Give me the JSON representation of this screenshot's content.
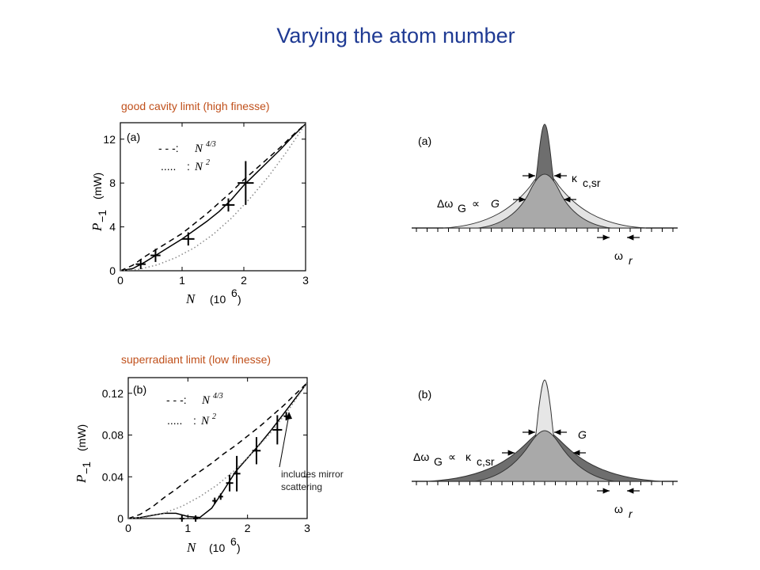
{
  "title": "Varying the atom number",
  "captions": {
    "a": "good cavity limit (high finesse)",
    "b": "superradiant limit (low finesse)"
  },
  "note": {
    "line1": "includes mirror",
    "line2": "scattering"
  },
  "chart_data": [
    {
      "type": "scatter",
      "panel_label": "(a)",
      "xlabel": "N",
      "xunit": "(10",
      "xunit_exp": "6",
      "xunit_close": ")",
      "ylabel": "P",
      "ylabel_sub": "−1",
      "yunit": "(mW)",
      "xlim": [
        0,
        3
      ],
      "ylim": [
        0,
        13.5
      ],
      "xticks": [
        "0",
        "1",
        "2",
        "3"
      ],
      "yticks": [
        "0",
        "4",
        "8",
        "12"
      ],
      "xtick_values": [
        0,
        1,
        2,
        3
      ],
      "ytick_values": [
        0,
        4,
        8,
        12
      ],
      "legend": {
        "dash_prefix": "- - -:",
        "dot_prefix": ".....",
        "dot_sep": ":",
        "symbol": "N",
        "dash_exp": "4/3",
        "dot_exp": "2"
      },
      "points": [
        {
          "x": 0.33,
          "y": 0.6,
          "xerr": 0.08,
          "yerr": 0.45
        },
        {
          "x": 0.57,
          "y": 1.4,
          "xerr": 0.08,
          "yerr": 0.6
        },
        {
          "x": 1.1,
          "y": 2.9,
          "xerr": 0.1,
          "yerr": 0.6
        },
        {
          "x": 1.75,
          "y": 6.0,
          "xerr": 0.1,
          "yerr": 0.6
        },
        {
          "x": 2.03,
          "y": 8.0,
          "xerr": 0.13,
          "yerr": 2.0
        }
      ],
      "series": [
        {
          "style": "solid",
          "x": [
            0,
            0.2,
            0.4,
            0.6,
            0.8,
            1.0,
            1.2,
            1.4,
            1.6,
            1.8,
            2.0,
            2.2,
            2.4,
            2.6,
            2.8,
            3.0
          ],
          "y": [
            0,
            0.2,
            0.8,
            1.5,
            2.2,
            2.9,
            3.7,
            4.5,
            5.4,
            6.5,
            7.8,
            8.9,
            10.0,
            11.1,
            12.3,
            13.4
          ]
        },
        {
          "style": "dashed",
          "x": [
            0,
            0.2,
            0.4,
            0.6,
            0.8,
            1.0,
            1.2,
            1.4,
            1.6,
            1.8,
            2.0,
            2.2,
            2.4,
            2.6,
            2.8,
            3.0
          ],
          "y": [
            0,
            0.5,
            1.3,
            2.0,
            2.7,
            3.4,
            4.3,
            5.2,
            6.2,
            7.2,
            8.3,
            9.3,
            10.3,
            11.3,
            12.4,
            13.4
          ]
        },
        {
          "style": "dotted",
          "x": [
            0,
            0.3,
            0.6,
            0.9,
            1.2,
            1.5,
            1.8,
            2.1,
            2.4,
            2.7,
            3.0
          ],
          "y": [
            0,
            0.13,
            0.54,
            1.2,
            2.1,
            3.3,
            4.8,
            6.6,
            8.6,
            10.9,
            13.4
          ]
        }
      ]
    },
    {
      "type": "scatter",
      "panel_label": "(b)",
      "xlabel": "N",
      "xunit": "(10",
      "xunit_exp": "6",
      "xunit_close": ")",
      "ylabel": "P",
      "ylabel_sub": "−1",
      "yunit": "(mW)",
      "xlim": [
        0,
        3
      ],
      "ylim": [
        0,
        0.135
      ],
      "xticks": [
        "0",
        "1",
        "2",
        "3"
      ],
      "yticks": [
        "0",
        "0.04",
        "0.08",
        "0.12"
      ],
      "xtick_values": [
        0,
        1,
        2,
        3
      ],
      "ytick_values": [
        0,
        0.04,
        0.08,
        0.12
      ],
      "legend": {
        "dash_prefix": "- - -:",
        "dot_prefix": ".....",
        "dot_sep": ":",
        "symbol": "N",
        "dash_exp": "4/3",
        "dot_exp": "2"
      },
      "points": [
        {
          "x": 0.9,
          "y": 0.0,
          "xerr": 0.04,
          "yerr": 0.0
        },
        {
          "x": 1.13,
          "y": 0.0,
          "xerr": 0.04,
          "yerr": 0.0
        },
        {
          "x": 1.45,
          "y": 0.017,
          "xerr": 0.04,
          "yerr": 0.002
        },
        {
          "x": 1.55,
          "y": 0.021,
          "xerr": 0.04,
          "yerr": 0.002
        },
        {
          "x": 1.7,
          "y": 0.034,
          "xerr": 0.06,
          "yerr": 0.008
        },
        {
          "x": 1.82,
          "y": 0.043,
          "xerr": 0.06,
          "yerr": 0.017
        },
        {
          "x": 2.15,
          "y": 0.065,
          "xerr": 0.07,
          "yerr": 0.013
        },
        {
          "x": 2.5,
          "y": 0.085,
          "xerr": 0.08,
          "yerr": 0.014
        },
        {
          "x": 2.65,
          "y": 0.098,
          "xerr": 0.04,
          "yerr": 0.004
        }
      ],
      "series": [
        {
          "style": "solid",
          "x": [
            0,
            0.2,
            0.4,
            0.6,
            0.8,
            1.0,
            1.2,
            1.4,
            1.6,
            1.8,
            2.0,
            2.2,
            2.4,
            2.6,
            2.8,
            3.0
          ],
          "y": [
            0,
            0.001,
            0.003,
            0.005,
            0.005,
            0.002,
            0.001,
            0.01,
            0.027,
            0.045,
            0.058,
            0.071,
            0.085,
            0.1,
            0.115,
            0.13
          ]
        },
        {
          "style": "dashed",
          "x": [
            0,
            0.2,
            0.4,
            0.6,
            0.8,
            1.0,
            1.2,
            1.4,
            1.6,
            1.8,
            2.0,
            2.2,
            2.4,
            2.6,
            2.8,
            3.0
          ],
          "y": [
            0,
            0.004,
            0.011,
            0.02,
            0.028,
            0.037,
            0.045,
            0.053,
            0.062,
            0.07,
            0.079,
            0.088,
            0.098,
            0.108,
            0.119,
            0.13
          ]
        },
        {
          "style": "dotted",
          "x": [
            0,
            0.3,
            0.6,
            0.9,
            1.2,
            1.5,
            1.8,
            2.1,
            2.4,
            2.7,
            3.0
          ],
          "y": [
            0,
            0.0013,
            0.0052,
            0.0117,
            0.021,
            0.0325,
            0.047,
            0.064,
            0.083,
            0.105,
            0.13
          ]
        }
      ]
    }
  ],
  "diagrams": {
    "a": {
      "label": "(a)",
      "kappa": "κ",
      "kappa_sub": "c,sr",
      "delta_omega": "Δω",
      "delta_omega_sub": "G",
      "propto": "∝",
      "G": "G",
      "omega": "ω",
      "omega_sub": "r"
    },
    "b": {
      "label": "(b)",
      "G": "G",
      "delta_omega": "Δω",
      "delta_omega_sub": "G",
      "propto": "∝",
      "kappa": "κ",
      "kappa_sub": "c,sr",
      "omega": "ω",
      "omega_sub": "r"
    }
  }
}
